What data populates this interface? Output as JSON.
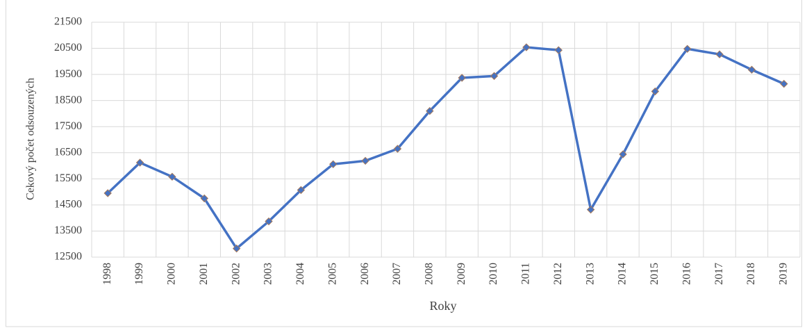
{
  "chart_data": {
    "type": "line",
    "x_label": "Roky",
    "y_label": "Cekový počet odsouzených",
    "categories": [
      "1998",
      "1999",
      "2000",
      "2001",
      "2002",
      "2003",
      "2004",
      "2005",
      "2006",
      "2007",
      "2008",
      "2009",
      "2010",
      "2011",
      "2012",
      "2013",
      "2014",
      "2015",
      "2016",
      "2017",
      "2018",
      "2019"
    ],
    "series": [
      {
        "name": "Cekový počet odsouzených",
        "color": "#4472c4",
        "values": [
          14950,
          16120,
          15580,
          14750,
          12830,
          13870,
          15070,
          16060,
          16190,
          16650,
          18100,
          19370,
          19440,
          20540,
          20430,
          14320,
          16440,
          18850,
          20480,
          20270,
          19680,
          19140
        ]
      }
    ],
    "ylim": [
      12500,
      21500
    ],
    "yticks": [
      12500,
      13500,
      14500,
      15500,
      16500,
      17500,
      18500,
      19500,
      20500,
      21500
    ],
    "grid": true
  }
}
